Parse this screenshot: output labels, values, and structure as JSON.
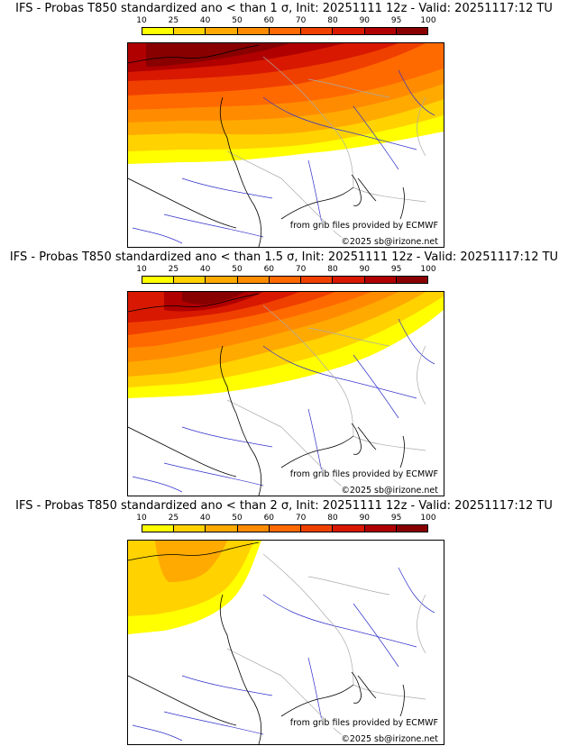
{
  "panels": [
    {
      "title": "IFS - Probas T850  standardized ano < than 1 σ, Init: 20251111 12z - Valid: 20251117:12 TU",
      "source_text": "from grib files provided by ECMWF",
      "copyright_text": "©2025 sb@irizone.net"
    },
    {
      "title": "IFS - Probas T850  standardized ano < than 1.5 σ, Init: 20251111 12z - Valid: 20251117:12 TU",
      "source_text": "from grib files provided by ECMWF",
      "copyright_text": "©2025 sb@irizone.net"
    },
    {
      "title": "IFS - Probas T850  standardized ano < than 2 σ, Init: 20251111 12z - Valid: 20251117:12 TU",
      "source_text": "from grib files provided by ECMWF",
      "copyright_text": "©2025 sb@irizone.net"
    }
  ],
  "colorbar": {
    "tick_labels": [
      "10",
      "25",
      "40",
      "50",
      "60",
      "70",
      "80",
      "90",
      "95",
      "100"
    ],
    "colors": [
      "#ffff00",
      "#ffd200",
      "#ffaa00",
      "#ff8c00",
      "#ff6a00",
      "#f04000",
      "#d81800",
      "#b00000",
      "#880000"
    ]
  },
  "map_colors": {
    "coast": "#000000",
    "rivers": "#3030cc",
    "borders": "#aaaaaa"
  }
}
